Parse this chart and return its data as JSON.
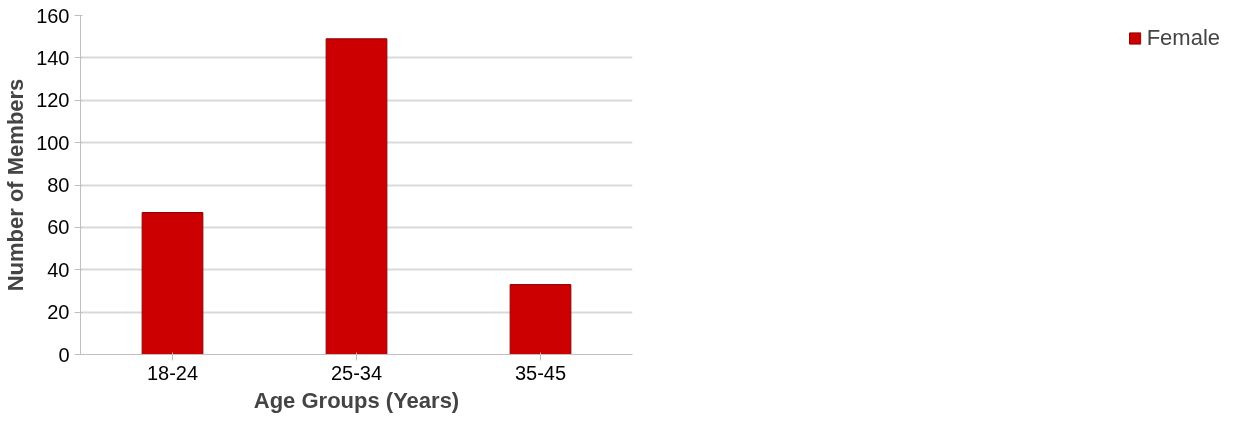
{
  "chart_data": {
    "type": "bar",
    "xlabel": "Age Groups (Years)",
    "ylabel": "Number of Members",
    "categories": [
      "18-24",
      "25-34",
      "35-45"
    ],
    "series": [
      {
        "name": "Female",
        "color": "#cc0000",
        "values": [
          67,
          149,
          33
        ]
      }
    ],
    "ylim": [
      0,
      160
    ],
    "yticks": [
      0,
      20,
      40,
      60,
      80,
      100,
      120,
      140,
      160
    ],
    "grid": "y",
    "legend": "right"
  }
}
